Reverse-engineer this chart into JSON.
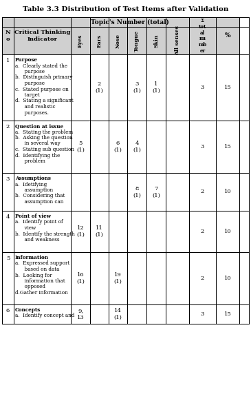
{
  "title": "Table 3.3 Distribution of Test Items after Validation",
  "col_headers_row2_senses": [
    "Eyes",
    "Ears",
    "Nose",
    "Tongue",
    "Skin",
    "All senses"
  ],
  "rows": [
    {
      "no": "1",
      "indicator_lines": [
        "Purpose",
        "a.  Clearly stated the",
        "      purpose",
        "b.  Distinguish primary",
        "      purpose",
        "c.  Stated purpose on",
        "      target",
        "d.  Stating a significant",
        "      and realistic",
        "      purposes."
      ],
      "eyes": "",
      "ears": "2\n(1)",
      "nose": "",
      "tongue": "3\n(1)",
      "skin": "1\n(1)",
      "all_senses": "",
      "total": "3",
      "percent": "15"
    },
    {
      "no": "2",
      "indicator_lines": [
        "Question at issue",
        "a.  Stating the problem",
        "b.  Asking the question",
        "      in several way",
        "c.  Stating sub question",
        "d.  Identifying the",
        "      problem"
      ],
      "eyes": "5\n(1)",
      "ears": "",
      "nose": "6\n(1)",
      "tongue": "4\n(1)",
      "skin": "",
      "all_senses": "",
      "total": "3",
      "percent": "15"
    },
    {
      "no": "3",
      "indicator_lines": [
        "Assumptions",
        "a.  Idetifying",
        "      assumption",
        "b.  Considering that",
        "      assumption can"
      ],
      "eyes": "",
      "ears": "",
      "nose": "",
      "tongue": "8\n(1)",
      "skin": "7\n(1)",
      "all_senses": "",
      "total": "2",
      "percent": "10"
    },
    {
      "no": "4",
      "indicator_lines": [
        "Point of view",
        "a.  Identify point of",
        "      view",
        "b.  Identify the strength",
        "      and weakness"
      ],
      "eyes": "12\n(1)",
      "ears": "11\n(1)",
      "nose": "",
      "tongue": "",
      "skin": "",
      "all_senses": "",
      "total": "2",
      "percent": "10"
    },
    {
      "no": "5",
      "indicator_lines": [
        "Information",
        "a.  Expressed support",
        "      based on data",
        "b.  Looking for",
        "      information that",
        "      opposed",
        "d.Gather information"
      ],
      "eyes": "16\n(1)",
      "ears": "",
      "nose": "19\n(1)",
      "tongue": "",
      "skin": "",
      "all_senses": "",
      "total": "2",
      "percent": "10"
    },
    {
      "no": "6",
      "indicator_lines": [
        "Concepts",
        "a.  Identify concept and"
      ],
      "eyes": "9,\n13",
      "ears": "",
      "nose": "14\n(1)",
      "tongue": "",
      "skin": "",
      "all_senses": "",
      "total": "3",
      "percent": "15"
    }
  ],
  "bg_header": "#d0d0d0",
  "bg_white": "#ffffff",
  "text_color": "#000000",
  "border_color": "#000000",
  "fig_width": 3.65,
  "fig_height": 5.85,
  "dpi": 100
}
